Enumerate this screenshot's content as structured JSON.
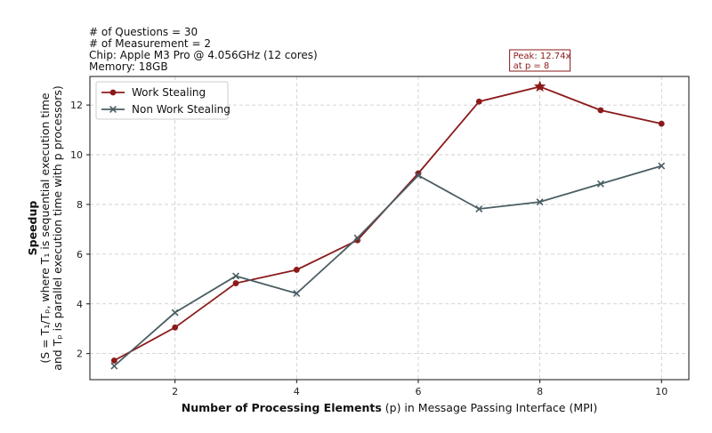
{
  "info": {
    "questions": "# of Questions = 30",
    "measurement": "# of Measurement = 2",
    "chip": "Chip: Apple M3 Pro @ 4.056GHz (12 cores)",
    "memory": "Memory: 18GB"
  },
  "colors": {
    "work_stealing": "#8b1a1a",
    "non_work_stealing": "#4a5e63",
    "grid": "#c8c8c8"
  },
  "chart_data": {
    "type": "line",
    "x": [
      1,
      2,
      3,
      4,
      5,
      6,
      7,
      8,
      9,
      10
    ],
    "xlim": [
      0.6,
      10.45
    ],
    "ylim": [
      0.95,
      13.15
    ],
    "xticks": [
      2,
      4,
      6,
      8,
      10
    ],
    "yticks": [
      2,
      4,
      6,
      8,
      10,
      12
    ],
    "grid": true,
    "legend_position": "top-left",
    "xlabel": {
      "bold": "Number of Processing Elements",
      "rest": " (p) in Message Passing Interface (MPI)"
    },
    "ylabel": {
      "bold": "Speedup",
      "line1": "(S = T₁/Tₚ, where T₁ is sequential execution time",
      "line2": "and Tₚ is parallel execution time with p processors)"
    },
    "series": [
      {
        "name": "Work Stealing",
        "marker": "circle",
        "values": [
          1.72,
          3.05,
          4.83,
          5.37,
          6.56,
          9.25,
          12.14,
          12.74,
          11.79,
          11.25
        ]
      },
      {
        "name": "Non Work Stealing",
        "marker": "x",
        "values": [
          1.5,
          3.65,
          5.12,
          4.42,
          6.65,
          9.17,
          7.82,
          8.1,
          8.83,
          9.55
        ]
      }
    ],
    "annotation": {
      "line1": "Peak: 12.74x",
      "line2": "at p = 8",
      "x": 8,
      "y": 12.74
    }
  }
}
